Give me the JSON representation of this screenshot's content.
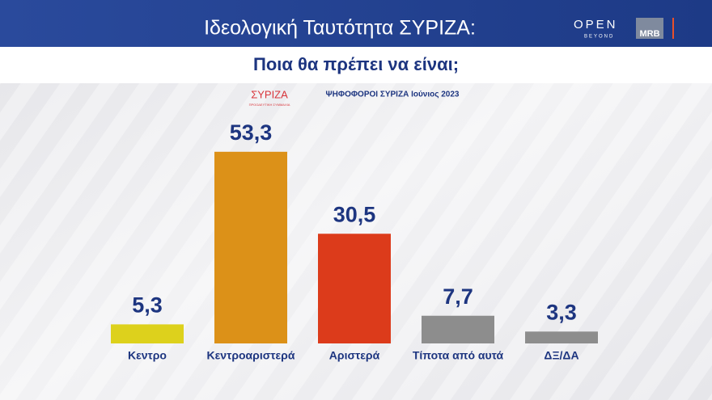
{
  "chart_data": {
    "type": "bar",
    "title": "Ιδεολογική Ταυτότητα ΣΥΡΙΖΑ:",
    "subtitle": "Ποια θα πρέπει να είναι;",
    "source": "ΨΗΦΟΦΟΡΟΙ ΣΥΡΙΖΑ Ιούνιος 2023",
    "party_logo": "ΣΥΡΙΖΑ",
    "party_logo_sub": "ΠΡΟΟΔΕΥΤΙΚΗ ΣΥΜΜΑΧΙΑ",
    "channel_logo": "OPEN",
    "channel_logo_sub": "BEYOND",
    "pollster_logo": "MRB",
    "categories": [
      "Κεντρο",
      "Κεντροαριστερά",
      "Αριστερά",
      "Τίποτα από αυτά",
      "ΔΞ/ΔΑ"
    ],
    "values": [
      5.3,
      53.3,
      30.5,
      7.7,
      3.3
    ],
    "value_labels": [
      "5,3",
      "53,3",
      "30,5",
      "7,7",
      "3,3"
    ],
    "colors": [
      "#ddd11c",
      "#dc9118",
      "#dc3b1b",
      "#8d8d8d",
      "#8d8d8d"
    ]
  }
}
